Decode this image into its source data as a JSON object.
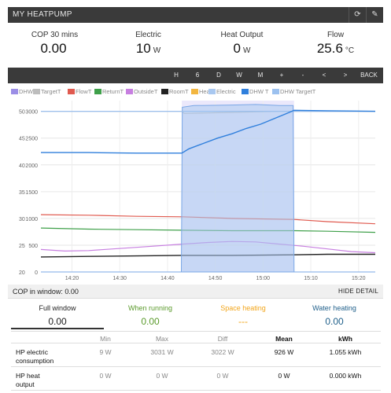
{
  "app": {
    "title": "MY HEATPUMP",
    "buttons": [
      {
        "icon": "refresh-icon",
        "glyph": "⟳"
      },
      {
        "icon": "edit-icon",
        "glyph": "✎"
      }
    ]
  },
  "stats": [
    {
      "label": "COP 30 mins",
      "value": "0.00",
      "unit": ""
    },
    {
      "label": "Electric",
      "value": "10",
      "unit": "W"
    },
    {
      "label": "Heat Output",
      "value": "0",
      "unit": "W"
    },
    {
      "label": "Flow",
      "value": "25.6",
      "unit": "°C"
    }
  ],
  "nav": [
    "H",
    "6",
    "D",
    "W",
    "M",
    "+",
    "-",
    "<",
    ">",
    "BACK"
  ],
  "legend": [
    {
      "label": "DHW",
      "color": "#9b8ee6"
    },
    {
      "label": "TargetT",
      "color": "#bdbdbd"
    },
    {
      "label": "FlowT",
      "color": "#e05a4f"
    },
    {
      "label": "ReturnT",
      "color": "#3fa04a"
    },
    {
      "label": "OutsideT",
      "color": "#c77fe0"
    },
    {
      "label": "RoomT",
      "color": "#222222"
    },
    {
      "label": "Heat",
      "color": "#f2b640"
    },
    {
      "label": "Electric",
      "color": "#a9c8f0"
    },
    {
      "label": "DHW T",
      "color": "#2f7fdc"
    },
    {
      "label": "DHW TargetT",
      "color": "#9cc1ef"
    }
  ],
  "chart_data": {
    "type": "line",
    "x_ticks": [
      "14:20",
      "14:30",
      "14:40",
      "14:50",
      "15:00",
      "15:10",
      "15:20"
    ],
    "y_left_ticks": [
      "20",
      "25",
      "30",
      "35",
      "40",
      "45",
      "50"
    ],
    "y_right_ticks": [
      "0",
      "500",
      "1000",
      "1500",
      "2000",
      "2500",
      "3000"
    ],
    "ylim_left": [
      20,
      52
    ],
    "ylim_right": [
      0,
      3120
    ],
    "xlim_minutes": [
      0,
      70
    ],
    "dhw_window_minutes": [
      29.5,
      53
    ],
    "series": [
      {
        "name": "TargetT",
        "axis": "left",
        "color": "#bdbdbd",
        "x": [
          0,
          29.5,
          30,
          35,
          40,
          45,
          50,
          53,
          70
        ],
        "y": [
          50,
          50,
          49.6,
          49.7,
          49.8,
          49.9,
          50,
          50,
          50
        ]
      },
      {
        "name": "FlowT",
        "axis": "left",
        "color": "#e05a4f",
        "x": [
          0,
          10,
          20,
          29.5,
          40,
          53,
          60,
          70
        ],
        "y": [
          30.7,
          30.6,
          30.4,
          30.3,
          30.0,
          29.8,
          29.4,
          29.0
        ]
      },
      {
        "name": "ReturnT",
        "axis": "left",
        "color": "#3fa04a",
        "x": [
          0,
          10,
          20,
          29.5,
          40,
          53,
          60,
          70
        ],
        "y": [
          28.2,
          28.0,
          27.9,
          27.8,
          27.7,
          27.7,
          27.6,
          27.4
        ]
      },
      {
        "name": "OutsideT",
        "axis": "left",
        "color": "#c77fe0",
        "x": [
          0,
          5,
          10,
          20,
          29.5,
          35,
          40,
          45,
          50,
          55,
          60,
          65,
          70
        ],
        "y": [
          24.2,
          23.9,
          24.0,
          24.6,
          25.2,
          25.5,
          25.7,
          25.6,
          25.2,
          24.8,
          24.3,
          23.8,
          23.6
        ]
      },
      {
        "name": "RoomT",
        "axis": "left",
        "color": "#222222",
        "x": [
          0,
          10,
          20,
          29.5,
          40,
          53,
          60,
          70
        ],
        "y": [
          22.8,
          22.9,
          23.0,
          23.1,
          23.1,
          23.2,
          23.3,
          23.3
        ]
      },
      {
        "name": "Electric",
        "axis": "right",
        "color": "#a9c8f0",
        "x": [
          0,
          29.4,
          29.6,
          32,
          40,
          45,
          50,
          52.8,
          53,
          70
        ],
        "y": [
          0,
          0,
          3000,
          3030,
          3040,
          3050,
          3030,
          3030,
          0,
          0
        ]
      },
      {
        "name": "DHW TargetT",
        "axis": "left",
        "color": "#9cc1ef",
        "x": [
          0,
          70
        ],
        "y": [
          50,
          50
        ]
      },
      {
        "name": "DHW T",
        "axis": "left",
        "color": "#2f7fdc",
        "x": [
          0,
          10,
          20,
          29.5,
          31,
          34,
          37,
          40,
          43,
          46,
          49,
          52,
          53,
          60,
          70
        ],
        "y": [
          42.3,
          42.3,
          42.2,
          42.2,
          43.0,
          44.0,
          45.0,
          45.8,
          46.8,
          47.6,
          48.7,
          49.8,
          50.2,
          50.1,
          50.0
        ]
      }
    ]
  },
  "cop": {
    "label": "COP in window: 0.00",
    "hide": "HIDE DETAIL"
  },
  "modes": [
    {
      "label": "Full window",
      "value": "0.00",
      "color": "#222222",
      "active": true
    },
    {
      "label": "When running",
      "value": "0.00",
      "color": "#5a9a2b",
      "active": false
    },
    {
      "label": "Space heating",
      "value": "---",
      "color": "#f2a51a",
      "active": false
    },
    {
      "label": "Water heating",
      "value": "0.00",
      "color": "#1f5f8a",
      "active": false
    }
  ],
  "table": {
    "headers": [
      "Min",
      "Max",
      "Diff",
      "Mean",
      "kWh"
    ],
    "rows": [
      {
        "label_line1": "HP electric",
        "label_line2": "consumption",
        "values": [
          "9 W",
          "3031 W",
          "3022 W",
          "926 W",
          "1.055 kWh"
        ]
      },
      {
        "label_line1": "HP heat",
        "label_line2": "output",
        "values": [
          "0 W",
          "0 W",
          "0 W",
          "0 W",
          "0.000 kWh"
        ]
      }
    ]
  }
}
